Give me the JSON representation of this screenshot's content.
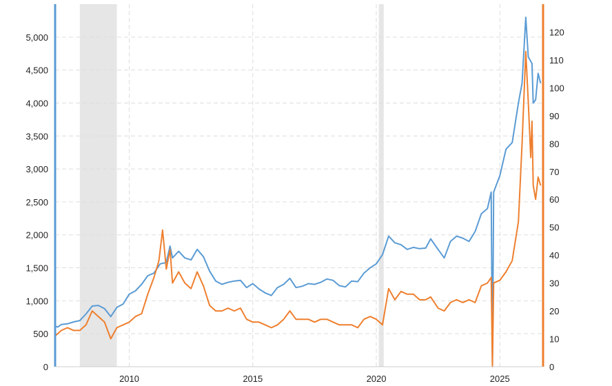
{
  "chart_data": {
    "type": "line",
    "title": "",
    "xlabel": "",
    "ylabel": "",
    "x_ticks": [
      2010,
      2015,
      2020,
      2025
    ],
    "x_range": [
      2007.0,
      2026.75
    ],
    "left_axis": {
      "range": [
        0,
        5500
      ],
      "ticks": [
        0,
        500,
        1000,
        1500,
        2000,
        2500,
        3000,
        3500,
        4000,
        4500,
        5000
      ],
      "tick_labels": [
        "0",
        "500",
        "1,000",
        "1,500",
        "2,000",
        "2,500",
        "3,000",
        "3,500",
        "4,000",
        "4,500",
        "5,000"
      ],
      "color": "#5a9bd4"
    },
    "right_axis": {
      "range": [
        0,
        130
      ],
      "ticks": [
        0,
        10,
        20,
        30,
        40,
        50,
        60,
        70,
        80,
        90,
        100,
        110,
        120
      ],
      "tick_labels": [
        "0",
        "10",
        "20",
        "30",
        "40",
        "50",
        "60",
        "70",
        "80",
        "90",
        "100",
        "110",
        "120"
      ],
      "color": "#ee7f2e"
    },
    "grid": true,
    "recessions": [
      {
        "start": 2008.0,
        "end": 2009.5
      },
      {
        "start": 2020.1,
        "end": 2020.3
      }
    ],
    "series": [
      {
        "axis": "left",
        "color": "#5a9bd4",
        "points": [
          [
            2007.0,
            620
          ],
          [
            2007.1,
            600
          ],
          [
            2007.25,
            640
          ],
          [
            2007.5,
            650
          ],
          [
            2007.75,
            680
          ],
          [
            2008.0,
            700
          ],
          [
            2008.25,
            800
          ],
          [
            2008.5,
            920
          ],
          [
            2008.75,
            930
          ],
          [
            2009.0,
            880
          ],
          [
            2009.25,
            760
          ],
          [
            2009.5,
            900
          ],
          [
            2009.75,
            950
          ],
          [
            2010.0,
            1100
          ],
          [
            2010.25,
            1150
          ],
          [
            2010.5,
            1250
          ],
          [
            2010.75,
            1380
          ],
          [
            2011.0,
            1420
          ],
          [
            2011.25,
            1560
          ],
          [
            2011.5,
            1580
          ],
          [
            2011.65,
            1830
          ],
          [
            2011.75,
            1650
          ],
          [
            2012.0,
            1750
          ],
          [
            2012.25,
            1650
          ],
          [
            2012.5,
            1620
          ],
          [
            2012.75,
            1780
          ],
          [
            2013.0,
            1670
          ],
          [
            2013.25,
            1450
          ],
          [
            2013.5,
            1300
          ],
          [
            2013.75,
            1250
          ],
          [
            2014.0,
            1280
          ],
          [
            2014.25,
            1300
          ],
          [
            2014.5,
            1310
          ],
          [
            2014.75,
            1200
          ],
          [
            2015.0,
            1260
          ],
          [
            2015.25,
            1180
          ],
          [
            2015.5,
            1120
          ],
          [
            2015.75,
            1080
          ],
          [
            2016.0,
            1200
          ],
          [
            2016.25,
            1250
          ],
          [
            2016.5,
            1340
          ],
          [
            2016.75,
            1200
          ],
          [
            2017.0,
            1220
          ],
          [
            2017.25,
            1260
          ],
          [
            2017.5,
            1250
          ],
          [
            2017.75,
            1280
          ],
          [
            2018.0,
            1330
          ],
          [
            2018.25,
            1310
          ],
          [
            2018.5,
            1230
          ],
          [
            2018.75,
            1210
          ],
          [
            2019.0,
            1300
          ],
          [
            2019.25,
            1290
          ],
          [
            2019.5,
            1420
          ],
          [
            2019.75,
            1500
          ],
          [
            2020.0,
            1560
          ],
          [
            2020.25,
            1700
          ],
          [
            2020.5,
            1980
          ],
          [
            2020.75,
            1880
          ],
          [
            2021.0,
            1850
          ],
          [
            2021.25,
            1780
          ],
          [
            2021.5,
            1810
          ],
          [
            2021.75,
            1790
          ],
          [
            2022.0,
            1800
          ],
          [
            2022.2,
            1940
          ],
          [
            2022.5,
            1780
          ],
          [
            2022.75,
            1650
          ],
          [
            2023.0,
            1900
          ],
          [
            2023.25,
            1980
          ],
          [
            2023.5,
            1950
          ],
          [
            2023.75,
            1900
          ],
          [
            2024.0,
            2050
          ],
          [
            2024.25,
            2320
          ],
          [
            2024.5,
            2400
          ],
          [
            2024.65,
            2650
          ],
          [
            2024.7,
            20
          ],
          [
            2024.75,
            2650
          ],
          [
            2025.0,
            2900
          ],
          [
            2025.25,
            3300
          ],
          [
            2025.5,
            3400
          ],
          [
            2025.75,
            4000
          ],
          [
            2025.9,
            4300
          ],
          [
            2026.05,
            5300
          ],
          [
            2026.15,
            4700
          ],
          [
            2026.3,
            4600
          ],
          [
            2026.35,
            4000
          ],
          [
            2026.45,
            4050
          ],
          [
            2026.55,
            4450
          ],
          [
            2026.65,
            4300
          ]
        ]
      },
      {
        "axis": "right",
        "color": "#ee7f2e",
        "points": [
          [
            2007.0,
            11
          ],
          [
            2007.25,
            13
          ],
          [
            2007.5,
            14
          ],
          [
            2007.75,
            13
          ],
          [
            2008.0,
            13
          ],
          [
            2008.25,
            15
          ],
          [
            2008.5,
            20
          ],
          [
            2008.75,
            18
          ],
          [
            2009.0,
            16
          ],
          [
            2009.25,
            10
          ],
          [
            2009.5,
            14
          ],
          [
            2009.75,
            15
          ],
          [
            2010.0,
            16
          ],
          [
            2010.25,
            18
          ],
          [
            2010.5,
            19
          ],
          [
            2010.75,
            26
          ],
          [
            2011.0,
            32
          ],
          [
            2011.2,
            38
          ],
          [
            2011.35,
            49
          ],
          [
            2011.5,
            35
          ],
          [
            2011.65,
            42
          ],
          [
            2011.75,
            30
          ],
          [
            2012.0,
            34
          ],
          [
            2012.25,
            30
          ],
          [
            2012.5,
            28
          ],
          [
            2012.75,
            34
          ],
          [
            2013.0,
            29
          ],
          [
            2013.25,
            22
          ],
          [
            2013.5,
            20
          ],
          [
            2013.75,
            20
          ],
          [
            2014.0,
            21
          ],
          [
            2014.25,
            20
          ],
          [
            2014.5,
            21
          ],
          [
            2014.75,
            17
          ],
          [
            2015.0,
            16
          ],
          [
            2015.25,
            16
          ],
          [
            2015.5,
            15
          ],
          [
            2015.75,
            14
          ],
          [
            2016.0,
            15
          ],
          [
            2016.25,
            17
          ],
          [
            2016.5,
            20
          ],
          [
            2016.75,
            17
          ],
          [
            2017.0,
            17
          ],
          [
            2017.25,
            17
          ],
          [
            2017.5,
            16
          ],
          [
            2017.75,
            17
          ],
          [
            2018.0,
            17
          ],
          [
            2018.25,
            16
          ],
          [
            2018.5,
            15
          ],
          [
            2018.75,
            15
          ],
          [
            2019.0,
            15
          ],
          [
            2019.25,
            14
          ],
          [
            2019.5,
            17
          ],
          [
            2019.75,
            18
          ],
          [
            2020.0,
            17
          ],
          [
            2020.25,
            15
          ],
          [
            2020.5,
            28
          ],
          [
            2020.75,
            24
          ],
          [
            2021.0,
            27
          ],
          [
            2021.25,
            26
          ],
          [
            2021.5,
            26
          ],
          [
            2021.75,
            24
          ],
          [
            2022.0,
            24
          ],
          [
            2022.2,
            25
          ],
          [
            2022.5,
            21
          ],
          [
            2022.75,
            20
          ],
          [
            2023.0,
            23
          ],
          [
            2023.25,
            24
          ],
          [
            2023.5,
            23
          ],
          [
            2023.75,
            24
          ],
          [
            2024.0,
            23
          ],
          [
            2024.25,
            29
          ],
          [
            2024.5,
            30
          ],
          [
            2024.65,
            32
          ],
          [
            2024.7,
            0
          ],
          [
            2024.75,
            30
          ],
          [
            2025.0,
            31
          ],
          [
            2025.25,
            34
          ],
          [
            2025.5,
            38
          ],
          [
            2025.75,
            52
          ],
          [
            2025.9,
            80
          ],
          [
            2026.05,
            113
          ],
          [
            2026.15,
            95
          ],
          [
            2026.25,
            75
          ],
          [
            2026.3,
            88
          ],
          [
            2026.35,
            65
          ],
          [
            2026.45,
            60
          ],
          [
            2026.55,
            68
          ],
          [
            2026.65,
            65
          ]
        ]
      }
    ]
  }
}
